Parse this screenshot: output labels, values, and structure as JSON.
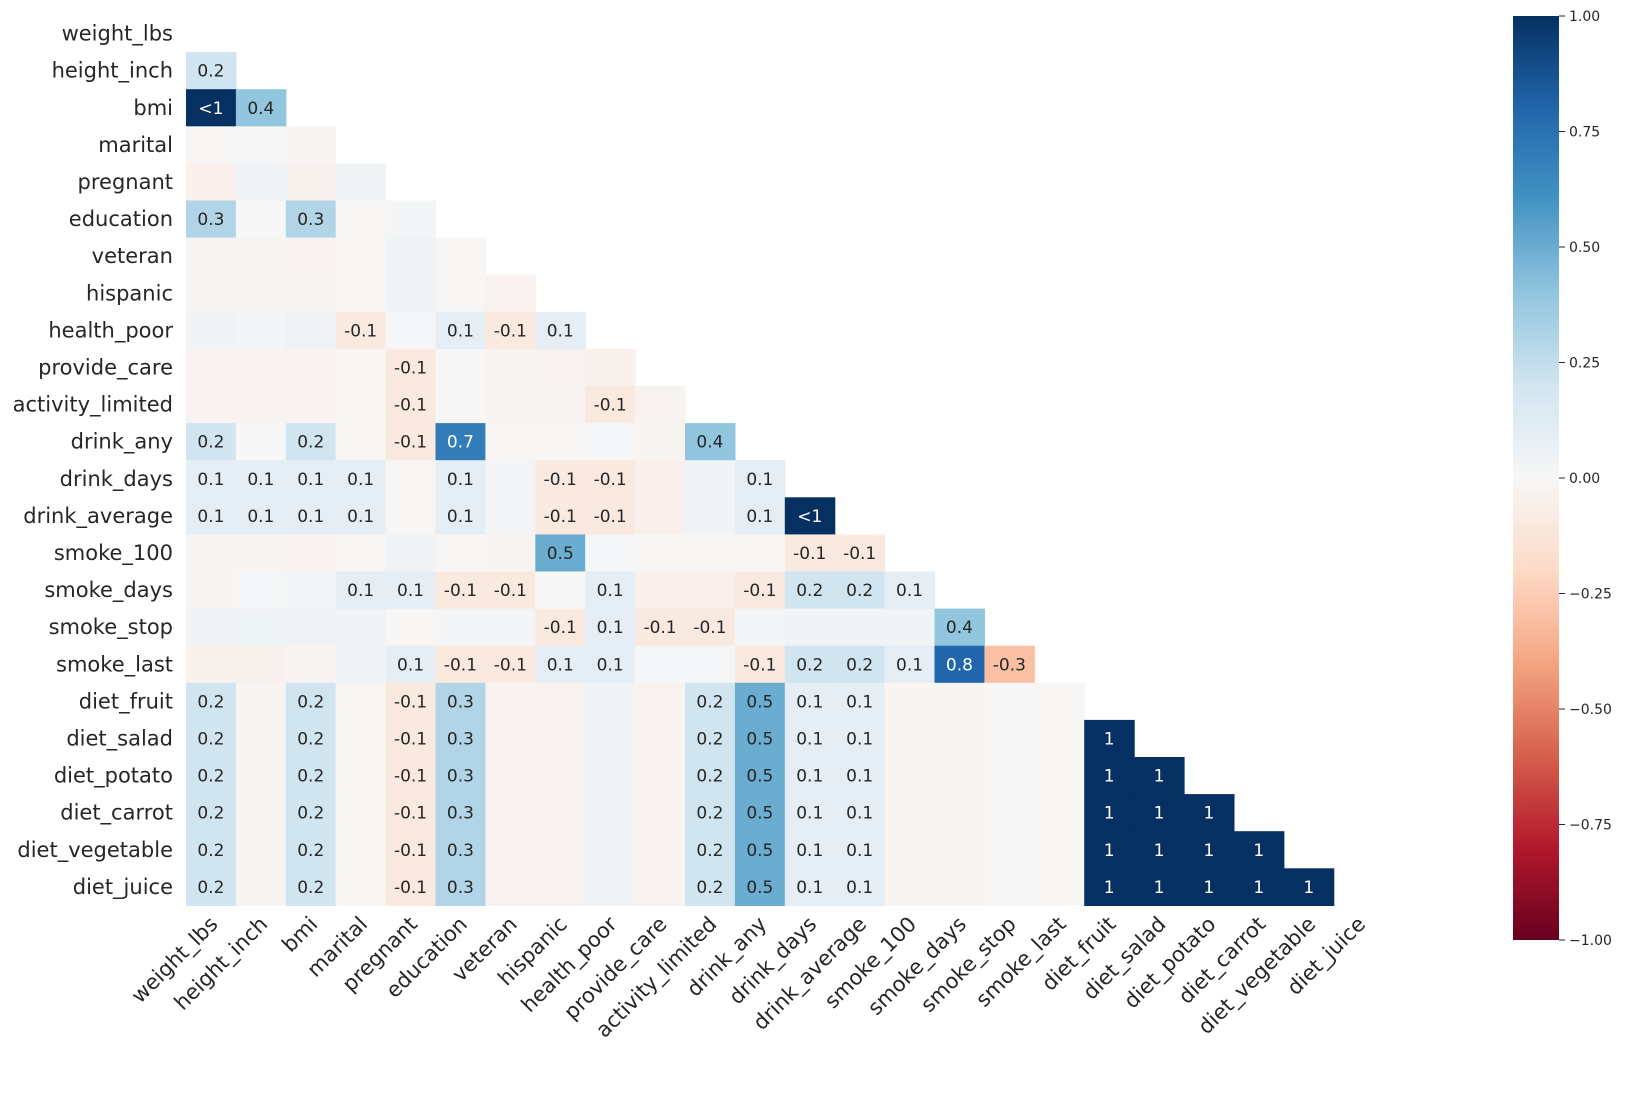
{
  "chart_data": {
    "type": "heatmap",
    "title": "",
    "xlabel": "",
    "ylabel": "",
    "labels": [
      "weight_lbs",
      "height_inch",
      "bmi",
      "marital",
      "pregnant",
      "education",
      "veteran",
      "hispanic",
      "health_poor",
      "provide_care",
      "activity_limited",
      "drink_any",
      "drink_days",
      "drink_average",
      "smoke_100",
      "smoke_days",
      "smoke_stop",
      "smoke_last",
      "diet_fruit",
      "diet_salad",
      "diet_potato",
      "diet_carrot",
      "diet_vegetable",
      "diet_juice"
    ],
    "mask": "upper-triangle-including-diagonal",
    "colormap": "RdBu",
    "vmin": -1.0,
    "vmax": 1.0,
    "colorbar": {
      "ticks": [
        1.0,
        0.75,
        0.5,
        0.25,
        0.0,
        -0.25,
        -0.5,
        -0.75,
        -1.0
      ],
      "tick_labels": [
        "1.00",
        "0.75",
        "0.50",
        "0.25",
        "0.00",
        "−0.25",
        "−0.50",
        "−0.75",
        "−1.00"
      ]
    },
    "rows": [
      [],
      [
        0.2
      ],
      [
        0.999,
        0.4
      ],
      [
        -0.01,
        -0.005,
        -0.02
      ],
      [
        -0.05,
        0.03,
        -0.04,
        0.03
      ],
      [
        0.3,
        0.0,
        0.3,
        -0.01,
        0.02
      ],
      [
        -0.02,
        -0.02,
        -0.03,
        -0.01,
        0.03,
        -0.01
      ],
      [
        -0.02,
        -0.02,
        -0.02,
        -0.01,
        0.03,
        -0.01,
        -0.03
      ],
      [
        0.03,
        0.02,
        0.04,
        -0.1,
        0.01,
        0.1,
        -0.1,
        0.1
      ],
      [
        -0.03,
        -0.03,
        -0.03,
        -0.01,
        -0.1,
        0.0,
        -0.02,
        -0.03,
        -0.04
      ],
      [
        -0.03,
        -0.03,
        -0.03,
        -0.01,
        -0.1,
        0.0,
        -0.02,
        -0.02,
        -0.1,
        -0.03
      ],
      [
        0.2,
        0.0,
        0.2,
        -0.01,
        -0.1,
        0.7,
        -0.01,
        -0.01,
        0.01,
        -0.02,
        0.4
      ],
      [
        0.1,
        0.1,
        0.1,
        0.1,
        -0.01,
        0.1,
        0.02,
        -0.1,
        -0.1,
        -0.05,
        0.03,
        0.1
      ],
      [
        0.1,
        0.1,
        0.1,
        0.1,
        -0.01,
        0.1,
        0.02,
        -0.1,
        -0.1,
        -0.05,
        0.03,
        0.1,
        0.999
      ],
      [
        -0.02,
        -0.02,
        -0.03,
        -0.01,
        0.03,
        -0.01,
        -0.02,
        0.5,
        0.01,
        -0.01,
        -0.01,
        -0.01,
        -0.1,
        -0.1
      ],
      [
        -0.02,
        0.01,
        0.02,
        0.1,
        0.1,
        -0.1,
        -0.1,
        0.0,
        0.1,
        -0.05,
        -0.05,
        -0.1,
        0.2,
        0.2,
        0.1
      ],
      [
        0.03,
        0.05,
        0.04,
        0.03,
        -0.01,
        0.02,
        0.02,
        -0.1,
        0.1,
        -0.1,
        -0.1,
        0.02,
        0.03,
        0.03,
        0.03,
        0.4
      ],
      [
        -0.04,
        -0.04,
        -0.02,
        0.03,
        0.1,
        -0.1,
        -0.1,
        0.1,
        0.1,
        0.01,
        0.01,
        -0.1,
        0.2,
        0.2,
        0.1,
        0.8,
        -0.3
      ],
      [
        0.2,
        -0.02,
        0.2,
        -0.01,
        -0.1,
        0.3,
        -0.03,
        -0.03,
        0.03,
        -0.03,
        0.2,
        0.5,
        0.1,
        0.1,
        -0.02,
        -0.02,
        0.0,
        -0.01
      ],
      [
        0.2,
        -0.02,
        0.2,
        -0.01,
        -0.1,
        0.3,
        -0.03,
        -0.03,
        0.03,
        -0.03,
        0.2,
        0.5,
        0.1,
        0.1,
        -0.02,
        -0.02,
        0.0,
        -0.01,
        1.0
      ],
      [
        0.2,
        -0.02,
        0.2,
        -0.01,
        -0.1,
        0.3,
        -0.03,
        -0.03,
        0.03,
        -0.03,
        0.2,
        0.5,
        0.1,
        0.1,
        -0.02,
        -0.02,
        0.0,
        -0.01,
        1.0,
        1.0
      ],
      [
        0.2,
        -0.02,
        0.2,
        -0.01,
        -0.1,
        0.3,
        -0.03,
        -0.03,
        0.03,
        -0.03,
        0.2,
        0.5,
        0.1,
        0.1,
        -0.02,
        -0.02,
        0.0,
        -0.01,
        1.0,
        1.0,
        1.0
      ],
      [
        0.2,
        -0.02,
        0.2,
        -0.01,
        -0.1,
        0.3,
        -0.03,
        -0.03,
        0.03,
        -0.03,
        0.2,
        0.5,
        0.1,
        0.1,
        -0.02,
        -0.02,
        0.0,
        -0.01,
        1.0,
        1.0,
        1.0,
        1.0
      ],
      [
        0.2,
        -0.02,
        0.2,
        -0.01,
        -0.1,
        0.3,
        -0.03,
        -0.03,
        0.03,
        -0.03,
        0.2,
        0.5,
        0.1,
        0.1,
        -0.02,
        -0.02,
        0.0,
        -0.01,
        1.0,
        1.0,
        1.0,
        1.0,
        1.0
      ]
    ],
    "annotations": [
      [],
      [
        "0.2"
      ],
      [
        "<1",
        "0.4"
      ],
      [
        "",
        "",
        ""
      ],
      [
        "",
        "",
        "",
        ""
      ],
      [
        "0.3",
        "",
        "0.3",
        "",
        ""
      ],
      [
        "",
        "",
        "",
        "",
        "",
        ""
      ],
      [
        "",
        "",
        "",
        "",
        "",
        "",
        ""
      ],
      [
        "",
        "",
        "",
        "-0.1",
        "",
        "0.1",
        "-0.1",
        "0.1"
      ],
      [
        "",
        "",
        "",
        "",
        "-0.1",
        "",
        "",
        "",
        ""
      ],
      [
        "",
        "",
        "",
        "",
        "-0.1",
        "",
        "",
        "",
        "-0.1",
        ""
      ],
      [
        "0.2",
        "",
        "0.2",
        "",
        "-0.1",
        "0.7",
        "",
        "",
        "",
        "",
        "0.4"
      ],
      [
        "0.1",
        "0.1",
        "0.1",
        "0.1",
        "",
        "0.1",
        "",
        "-0.1",
        "-0.1",
        "",
        "",
        "0.1"
      ],
      [
        "0.1",
        "0.1",
        "0.1",
        "0.1",
        "",
        "0.1",
        "",
        "-0.1",
        "-0.1",
        "",
        "",
        "0.1",
        "<1"
      ],
      [
        "",
        "",
        "",
        "",
        "",
        "",
        "",
        "0.5",
        "",
        "",
        "",
        "",
        "-0.1",
        "-0.1"
      ],
      [
        "",
        "",
        "",
        "0.1",
        "0.1",
        "-0.1",
        "-0.1",
        "",
        "0.1",
        "",
        "",
        "-0.1",
        "0.2",
        "0.2",
        "0.1"
      ],
      [
        "",
        "",
        "",
        "",
        "",
        "",
        "",
        "-0.1",
        "0.1",
        "-0.1",
        "-0.1",
        "",
        "",
        "",
        "",
        "0.4"
      ],
      [
        "",
        "",
        "",
        "",
        "0.1",
        "-0.1",
        "-0.1",
        "0.1",
        "0.1",
        "",
        "",
        "-0.1",
        "0.2",
        "0.2",
        "0.1",
        "0.8",
        "-0.3"
      ],
      [
        "0.2",
        "",
        "0.2",
        "",
        "-0.1",
        "0.3",
        "",
        "",
        "",
        "",
        "0.2",
        "0.5",
        "0.1",
        "0.1",
        "",
        "",
        "",
        ""
      ],
      [
        "0.2",
        "",
        "0.2",
        "",
        "-0.1",
        "0.3",
        "",
        "",
        "",
        "",
        "0.2",
        "0.5",
        "0.1",
        "0.1",
        "",
        "",
        "",
        "",
        "1"
      ],
      [
        "0.2",
        "",
        "0.2",
        "",
        "-0.1",
        "0.3",
        "",
        "",
        "",
        "",
        "0.2",
        "0.5",
        "0.1",
        "0.1",
        "",
        "",
        "",
        "",
        "1",
        "1"
      ],
      [
        "0.2",
        "",
        "0.2",
        "",
        "-0.1",
        "0.3",
        "",
        "",
        "",
        "",
        "0.2",
        "0.5",
        "0.1",
        "0.1",
        "",
        "",
        "",
        "",
        "1",
        "1",
        "1"
      ],
      [
        "0.2",
        "",
        "0.2",
        "",
        "-0.1",
        "0.3",
        "",
        "",
        "",
        "",
        "0.2",
        "0.5",
        "0.1",
        "0.1",
        "",
        "",
        "",
        "",
        "1",
        "1",
        "1",
        "1"
      ],
      [
        "0.2",
        "",
        "0.2",
        "",
        "-0.1",
        "0.3",
        "",
        "",
        "",
        "",
        "0.2",
        "0.5",
        "0.1",
        "0.1",
        "",
        "",
        "",
        "",
        "1",
        "1",
        "1",
        "1",
        "1"
      ]
    ]
  }
}
